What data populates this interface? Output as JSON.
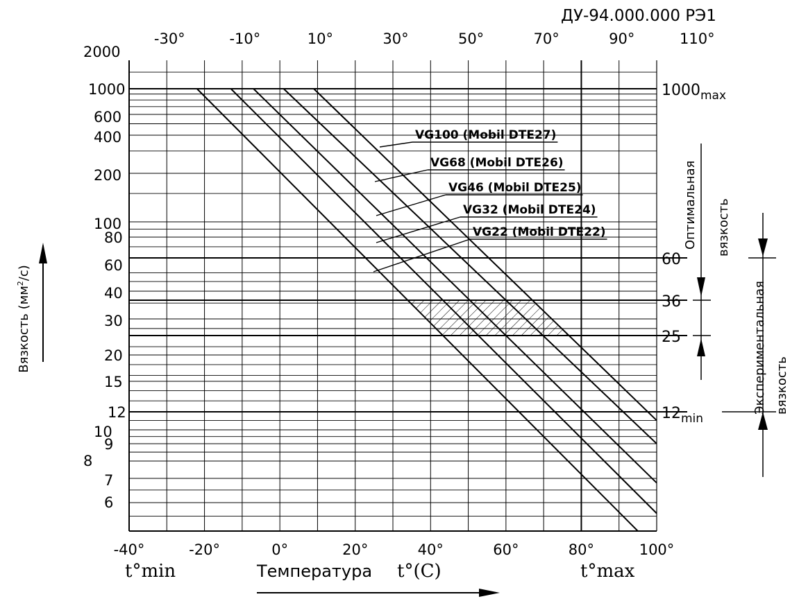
{
  "doc_code": "ДУ-94.000.000 РЭ1",
  "chart_data": {
    "type": "line",
    "x_bottom_ticks": [
      "-40°",
      "-20°",
      "0°",
      "20°",
      "40°",
      "60°",
      "80°",
      "100°"
    ],
    "x_top_ticks": [
      "-30°",
      "-10°",
      "10°",
      "30°",
      "50°",
      "70°",
      "90°",
      "110°"
    ],
    "y_left_ticks": [
      "2000",
      "1000",
      "600",
      "400",
      "200",
      "100",
      "80",
      "60",
      "40",
      "30",
      "20",
      "15",
      "12",
      "10",
      "9",
      "8",
      "7",
      "6"
    ],
    "xlim": [
      -40,
      100
    ],
    "x_scale": "linear",
    "y_scale": "log",
    "ylim": [
      5,
      2000
    ],
    "ylabel_line1": "Вязкость (мм",
    "ylabel_sup": "2",
    "ylabel_line2": "/с)",
    "xlabel": "Температура",
    "xlabel_unit": "t°(C)",
    "t_min_label": "t°min",
    "t_max_label": "t°max",
    "series": [
      {
        "name": "VG100 (Mobil DTE27)",
        "points": [
          [
            9,
            1000
          ],
          [
            100,
            11
          ]
        ]
      },
      {
        "name": "VG68 (Mobil DTE26)",
        "points": [
          [
            1,
            1000
          ],
          [
            100,
            9
          ]
        ]
      },
      {
        "name": "VG46 (Mobil DTE25)",
        "points": [
          [
            -7,
            1000
          ],
          [
            100,
            6.8
          ]
        ]
      },
      {
        "name": "VG32 (Mobil DTE24)",
        "points": [
          [
            -13,
            1000
          ],
          [
            100,
            5.6
          ]
        ]
      },
      {
        "name": "VG22 (Mobil DTE22)",
        "points": [
          [
            -22,
            1000
          ],
          [
            95,
            5
          ]
        ]
      }
    ],
    "reference_lines": [
      {
        "label": "1000",
        "suffix": "max",
        "value": 1000
      },
      {
        "label": "60",
        "suffix": "",
        "value": 60
      },
      {
        "label": "36",
        "suffix": "",
        "value": 36
      },
      {
        "label": "25",
        "suffix": "",
        "value": 25
      },
      {
        "label": "12",
        "suffix": "min",
        "value": 12
      }
    ],
    "annotations": {
      "optimal_line1": "Оптимальная",
      "optimal_line2": "вязкость",
      "experimental_line1": "Экспериментальная",
      "experimental_line2": "вязкость"
    },
    "hatched_region": {
      "y_range": [
        25,
        36
      ]
    },
    "grid": true
  }
}
